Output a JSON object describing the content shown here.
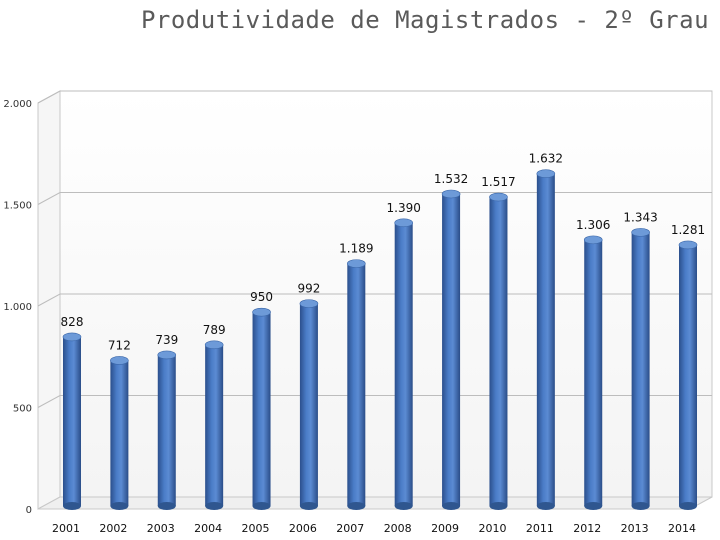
{
  "chart_data": {
    "type": "bar",
    "title": "Produtividade de Magistrados - 2º Grau",
    "xlabel": "",
    "ylabel": "",
    "categories": [
      "2001",
      "2002",
      "2003",
      "2004",
      "2005",
      "2006",
      "2007",
      "2008",
      "2009",
      "2010",
      "2011",
      "2012",
      "2013",
      "2014"
    ],
    "values": [
      828,
      712,
      739,
      789,
      950,
      992,
      1189,
      1390,
      1532,
      1517,
      1632,
      1306,
      1343,
      1281
    ],
    "value_labels": [
      "828",
      "712",
      "739",
      "789",
      "950",
      "992",
      "1.189",
      "1.390",
      "1.532",
      "1.517",
      "1.632",
      "1.306",
      "1.343",
      "1.281"
    ],
    "ylim": [
      0,
      2000
    ],
    "yticks": [
      0,
      500,
      1000,
      1500,
      2000
    ],
    "ytick_labels": [
      "0",
      "500",
      "1.000",
      "1.500",
      "2.000"
    ],
    "grid": true,
    "legend": "none",
    "bar_color": "#3f6fb8"
  }
}
